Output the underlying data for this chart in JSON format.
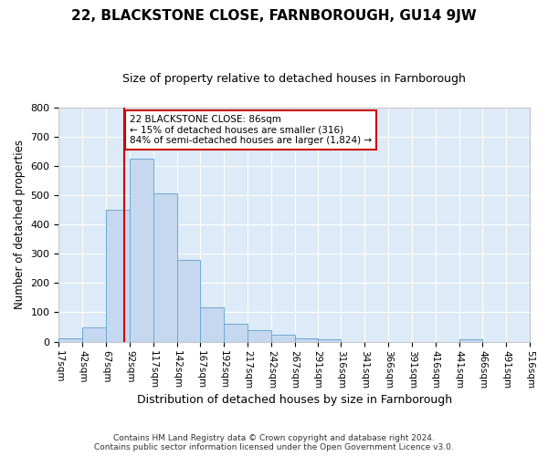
{
  "title": "22, BLACKSTONE CLOSE, FARNBOROUGH, GU14 9JW",
  "subtitle": "Size of property relative to detached houses in Farnborough",
  "xlabel": "Distribution of detached houses by size in Farnborough",
  "ylabel": "Number of detached properties",
  "footer_line1": "Contains HM Land Registry data © Crown copyright and database right 2024.",
  "footer_line2": "Contains public sector information licensed under the Open Government Licence v3.0.",
  "bar_edges": [
    17,
    42,
    67,
    92,
    117,
    142,
    167,
    192,
    217,
    242,
    267,
    291,
    316,
    341,
    366,
    391,
    416,
    441,
    466,
    491,
    516
  ],
  "bar_heights": [
    10,
    50,
    450,
    625,
    505,
    280,
    118,
    60,
    40,
    25,
    10,
    8,
    0,
    0,
    0,
    0,
    0,
    8,
    0,
    0
  ],
  "bar_color": "#c5d8f0",
  "bar_edge_color": "#6aaad4",
  "property_value": 86,
  "vline_color": "#cc0000",
  "annotation_line1": "22 BLACKSTONE CLOSE: 86sqm",
  "annotation_line2": "← 15% of detached houses are smaller (316)",
  "annotation_line3": "84% of semi-detached houses are larger (1,824) →",
  "annotation_box_color": "#ffffff",
  "annotation_box_edge_color": "#cc0000",
  "ylim": [
    0,
    800
  ],
  "yticks": [
    0,
    100,
    200,
    300,
    400,
    500,
    600,
    700,
    800
  ],
  "fig_bg_color": "#ffffff",
  "plot_bg_color": "#ddeaf7",
  "grid_color": "#ffffff",
  "tick_label_rotation": 270
}
